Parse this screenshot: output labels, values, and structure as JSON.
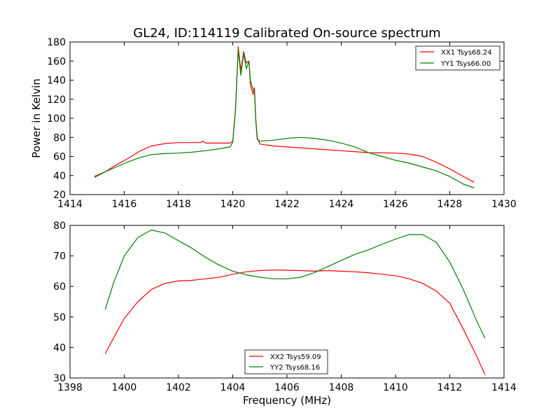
{
  "chart_data": [
    {
      "type": "line",
      "title": "GL24, ID:114119 Calibrated On-source spectrum",
      "xlabel": "",
      "ylabel": "Power in Kelvin",
      "xlim": [
        1414,
        1430
      ],
      "ylim": [
        20,
        180
      ],
      "xticks": [
        1414,
        1416,
        1418,
        1420,
        1422,
        1424,
        1426,
        1428,
        1430
      ],
      "yticks": [
        20,
        40,
        60,
        80,
        100,
        120,
        140,
        160,
        180
      ],
      "grid": false,
      "legend_position": "top-right",
      "series": [
        {
          "name": "XX1 Tsys68.24",
          "color": "#ff0000",
          "points": [
            [
              1414.9,
              38
            ],
            [
              1415.3,
              44
            ],
            [
              1415.7,
              51
            ],
            [
              1416.2,
              59
            ],
            [
              1416.6,
              66
            ],
            [
              1417.0,
              71
            ],
            [
              1417.5,
              73.5
            ],
            [
              1418.0,
              74.5
            ],
            [
              1418.8,
              74.5
            ],
            [
              1418.9,
              76
            ],
            [
              1419.0,
              74
            ],
            [
              1419.5,
              74
            ],
            [
              1419.9,
              74
            ],
            [
              1420.0,
              76
            ],
            [
              1420.1,
              110
            ],
            [
              1420.2,
              175
            ],
            [
              1420.3,
              150
            ],
            [
              1420.4,
              170
            ],
            [
              1420.5,
              158
            ],
            [
              1420.6,
              160
            ],
            [
              1420.65,
              135
            ],
            [
              1420.75,
              125
            ],
            [
              1420.8,
              132
            ],
            [
              1420.85,
              100
            ],
            [
              1420.9,
              80
            ],
            [
              1421.0,
              73
            ],
            [
              1421.5,
              71
            ],
            [
              1422.0,
              70
            ],
            [
              1423.0,
              68
            ],
            [
              1424.0,
              66
            ],
            [
              1425.0,
              64
            ],
            [
              1426.0,
              63.5
            ],
            [
              1426.5,
              62.5
            ],
            [
              1427.0,
              60
            ],
            [
              1427.5,
              54
            ],
            [
              1428.0,
              47
            ],
            [
              1428.5,
              39
            ],
            [
              1428.9,
              33
            ]
          ]
        },
        {
          "name": "YY1 Tsys66.00",
          "color": "#008000",
          "points": [
            [
              1414.9,
              39
            ],
            [
              1415.3,
              44
            ],
            [
              1415.7,
              49
            ],
            [
              1416.2,
              55
            ],
            [
              1416.6,
              59
            ],
            [
              1417.0,
              62
            ],
            [
              1417.5,
              63
            ],
            [
              1418.0,
              63.5
            ],
            [
              1418.5,
              64.5
            ],
            [
              1419.0,
              66
            ],
            [
              1419.5,
              68
            ],
            [
              1419.9,
              70
            ],
            [
              1420.0,
              75
            ],
            [
              1420.1,
              108
            ],
            [
              1420.2,
              172
            ],
            [
              1420.3,
              145
            ],
            [
              1420.4,
              168
            ],
            [
              1420.5,
              152
            ],
            [
              1420.6,
              160
            ],
            [
              1420.65,
              140
            ],
            [
              1420.75,
              130
            ],
            [
              1420.8,
              128
            ],
            [
              1420.85,
              98
            ],
            [
              1420.9,
              78
            ],
            [
              1421.0,
              76
            ],
            [
              1421.5,
              77
            ],
            [
              1422.0,
              79
            ],
            [
              1422.5,
              80
            ],
            [
              1423.0,
              79
            ],
            [
              1423.5,
              77
            ],
            [
              1424.0,
              74
            ],
            [
              1424.5,
              70
            ],
            [
              1425.0,
              64
            ],
            [
              1425.5,
              60
            ],
            [
              1426.0,
              56
            ],
            [
              1426.5,
              53
            ],
            [
              1427.0,
              49
            ],
            [
              1427.5,
              45
            ],
            [
              1428.0,
              39
            ],
            [
              1428.5,
              31
            ],
            [
              1428.9,
              27
            ]
          ]
        }
      ]
    },
    {
      "type": "line",
      "title": "",
      "xlabel": "Frequency (MHz)",
      "ylabel": "",
      "xlim": [
        1398,
        1414
      ],
      "ylim": [
        30,
        80
      ],
      "xticks": [
        1398,
        1400,
        1402,
        1404,
        1406,
        1408,
        1410,
        1412,
        1414
      ],
      "yticks": [
        30,
        40,
        50,
        60,
        70,
        80
      ],
      "grid": false,
      "legend_position": "bottom-center",
      "series": [
        {
          "name": "XX2 Tsys59.09",
          "color": "#ff0000",
          "points": [
            [
              1399.3,
              38
            ],
            [
              1399.6,
              43
            ],
            [
              1400.0,
              49.5
            ],
            [
              1400.5,
              55
            ],
            [
              1401.0,
              59
            ],
            [
              1401.5,
              61
            ],
            [
              1402.0,
              61.8
            ],
            [
              1402.5,
              62
            ],
            [
              1403.0,
              62.5
            ],
            [
              1403.5,
              63
            ],
            [
              1404.0,
              64
            ],
            [
              1404.5,
              64.8
            ],
            [
              1405.0,
              65.2
            ],
            [
              1405.5,
              65.4
            ],
            [
              1406.0,
              65.3
            ],
            [
              1406.5,
              65.2
            ],
            [
              1407.0,
              65
            ],
            [
              1407.5,
              65.2
            ],
            [
              1408.0,
              65
            ],
            [
              1408.5,
              64.8
            ],
            [
              1409.0,
              64.5
            ],
            [
              1409.5,
              64
            ],
            [
              1410.0,
              63.5
            ],
            [
              1410.5,
              62.5
            ],
            [
              1411.0,
              61
            ],
            [
              1411.5,
              58.5
            ],
            [
              1412.0,
              54.5
            ],
            [
              1412.5,
              46
            ],
            [
              1413.0,
              37
            ],
            [
              1413.3,
              31
            ]
          ]
        },
        {
          "name": "YY2 Tsys68.16",
          "color": "#008000",
          "points": [
            [
              1399.3,
              52.5
            ],
            [
              1399.6,
              61
            ],
            [
              1400.0,
              70
            ],
            [
              1400.5,
              76
            ],
            [
              1401.0,
              78.5
            ],
            [
              1401.5,
              77.5
            ],
            [
              1402.0,
              75
            ],
            [
              1402.5,
              72.5
            ],
            [
              1403.0,
              69.5
            ],
            [
              1403.5,
              67
            ],
            [
              1404.0,
              65
            ],
            [
              1404.5,
              63.8
            ],
            [
              1405.0,
              63
            ],
            [
              1405.5,
              62.5
            ],
            [
              1406.0,
              62.5
            ],
            [
              1406.5,
              63
            ],
            [
              1407.0,
              64.5
            ],
            [
              1407.5,
              66.5
            ],
            [
              1408.0,
              68.5
            ],
            [
              1408.5,
              70.5
            ],
            [
              1409.0,
              72
            ],
            [
              1409.5,
              73.8
            ],
            [
              1410.0,
              75.5
            ],
            [
              1410.5,
              77
            ],
            [
              1411.0,
              77
            ],
            [
              1411.5,
              74.5
            ],
            [
              1412.0,
              68
            ],
            [
              1412.5,
              59
            ],
            [
              1413.0,
              48.5
            ],
            [
              1413.3,
              43
            ]
          ]
        }
      ]
    }
  ]
}
